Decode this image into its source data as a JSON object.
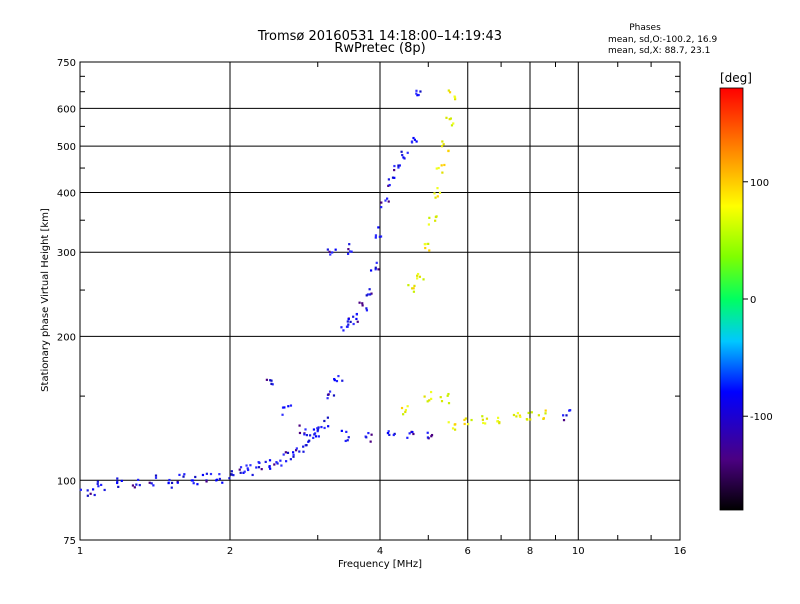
{
  "header": {
    "title": "Tromsø 20160531 14:18:00–14:19:43",
    "subtitle": "RwPretec (8p)",
    "phases_title": "Phases",
    "phases_o": "mean, sd,O:-100.2, 16.9",
    "phases_x": "mean, sd,X:  88.7, 23.1"
  },
  "chart_data": {
    "type": "scatter",
    "xlabel": "Frequency [MHz]",
    "ylabel": "Stationary phase Virtual Height [km]",
    "xscale": "log",
    "yscale": "log",
    "xlim": [
      1,
      16
    ],
    "ylim": [
      75,
      750
    ],
    "xticks": [
      1,
      2,
      4,
      6,
      8,
      10,
      16
    ],
    "xtick_labels": [
      "1",
      "2",
      "4",
      "6",
      "8",
      "10",
      "16"
    ],
    "yticks": [
      75,
      100,
      200,
      300,
      400,
      500,
      600,
      750
    ],
    "ytick_labels": [
      "75",
      "100",
      "200",
      "300",
      "400",
      "500",
      "600",
      "750"
    ],
    "grid": true,
    "colorbar": {
      "label": "[deg]",
      "range": [
        -180,
        180
      ],
      "ticks": [
        100,
        0,
        -100
      ],
      "tick_labels": [
        "100",
        "0",
        "-100"
      ],
      "colors": [
        "#000000",
        "#4b0082",
        "#0000ff",
        "#00ffff",
        "#00ff00",
        "#ffff00",
        "#ff8000",
        "#ff0000"
      ]
    },
    "series": [
      {
        "polarity": "O",
        "color_hint": "#1a1aff",
        "points": [
          [
            1.0,
            96
          ],
          [
            1.05,
            95
          ],
          [
            1.1,
            97
          ],
          [
            1.2,
            99
          ],
          [
            1.3,
            98
          ],
          [
            1.4,
            100
          ],
          [
            1.5,
            99
          ],
          [
            1.6,
            101
          ],
          [
            1.7,
            100
          ],
          [
            1.8,
            102
          ],
          [
            1.9,
            101
          ],
          [
            2.0,
            103
          ],
          [
            2.1,
            104
          ],
          [
            2.2,
            105
          ],
          [
            2.3,
            107
          ],
          [
            2.4,
            108
          ],
          [
            2.5,
            110
          ],
          [
            2.6,
            112
          ],
          [
            2.7,
            114
          ],
          [
            2.8,
            117
          ],
          [
            2.9,
            122
          ],
          [
            3.0,
            128
          ],
          [
            3.1,
            132
          ],
          [
            3.2,
            150
          ],
          [
            3.3,
            165
          ],
          [
            3.4,
            210
          ],
          [
            3.5,
            215
          ],
          [
            3.6,
            220
          ],
          [
            3.7,
            230
          ],
          [
            3.8,
            250
          ],
          [
            3.9,
            280
          ],
          [
            4.0,
            330
          ],
          [
            4.1,
            380
          ],
          [
            4.2,
            420
          ],
          [
            4.3,
            450
          ],
          [
            4.5,
            480
          ],
          [
            4.7,
            520
          ],
          [
            4.8,
            640
          ],
          [
            2.4,
            160
          ],
          [
            2.6,
            140
          ],
          [
            2.8,
            128
          ],
          [
            3.0,
            126
          ],
          [
            3.4,
            124
          ],
          [
            3.8,
            123
          ],
          [
            4.2,
            124
          ],
          [
            4.6,
            125
          ],
          [
            5.0,
            125
          ],
          [
            9.5,
            137
          ],
          [
            3.2,
            300
          ],
          [
            3.5,
            305
          ]
        ]
      },
      {
        "polarity": "X",
        "color_hint": "#d8e800",
        "points": [
          [
            4.6,
            250
          ],
          [
            4.8,
            270
          ],
          [
            5.0,
            310
          ],
          [
            5.1,
            350
          ],
          [
            5.2,
            400
          ],
          [
            5.3,
            450
          ],
          [
            5.4,
            500
          ],
          [
            5.5,
            560
          ],
          [
            5.6,
            640
          ],
          [
            4.5,
            140
          ],
          [
            5.0,
            150
          ],
          [
            5.4,
            148
          ],
          [
            5.6,
            130
          ],
          [
            6.0,
            132
          ],
          [
            6.5,
            134
          ],
          [
            7.0,
            135
          ],
          [
            7.5,
            136
          ],
          [
            8.0,
            137
          ],
          [
            8.5,
            137
          ]
        ]
      }
    ]
  }
}
